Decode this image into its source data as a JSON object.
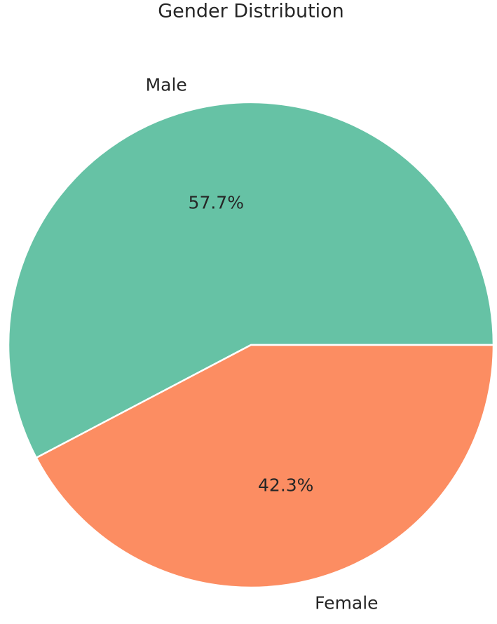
{
  "chart_data": {
    "type": "pie",
    "title": "Gender Distribution",
    "categories": [
      "Male",
      "Female"
    ],
    "values": [
      57.7,
      42.3
    ],
    "value_labels": [
      "57.7%",
      "42.3%"
    ],
    "colors": [
      "#66c2a5",
      "#fc8d62"
    ]
  }
}
